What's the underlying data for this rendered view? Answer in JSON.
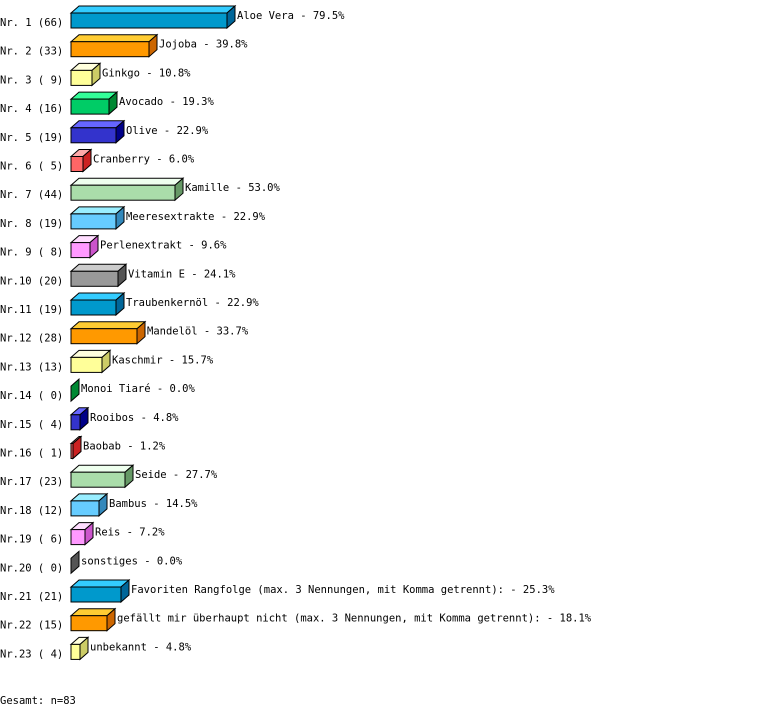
{
  "chart_data": {
    "type": "bar",
    "orientation": "horizontal",
    "style": "3d",
    "categories": [
      "Aloe Vera",
      "Jojoba",
      "Ginkgo",
      "Avocado",
      "Olive",
      "Cranberry",
      "Kamille",
      "Meeresextrakte",
      "Perlenextrakt",
      "Vitamin E",
      "Traubenkernöl",
      "Mandelöl",
      "Kaschmir",
      "Monoi Tiaré",
      "Rooibos",
      "Baobab",
      "Seide",
      "Bambus",
      "Reis",
      "sonstiges",
      "Favoriten Rangfolge (max. 3 Nennungen, mit Komma getrennt):",
      "gefällt mir überhaupt nicht (max. 3 Nennungen, mit Komma getrennt):",
      "unbekannt"
    ],
    "row_labels": [
      "Nr. 1 (66)",
      "Nr. 2 (33)",
      "Nr. 3 ( 9)",
      "Nr. 4 (16)",
      "Nr. 5 (19)",
      "Nr. 6 ( 5)",
      "Nr. 7 (44)",
      "Nr. 8 (19)",
      "Nr. 9 ( 8)",
      "Nr.10 (20)",
      "Nr.11 (19)",
      "Nr.12 (28)",
      "Nr.13 (13)",
      "Nr.14 ( 0)",
      "Nr.15 ( 4)",
      "Nr.16 ( 1)",
      "Nr.17 (23)",
      "Nr.18 (12)",
      "Nr.19 ( 6)",
      "Nr.20 ( 0)",
      "Nr.21 (21)",
      "Nr.22 (15)",
      "Nr.23 ( 4)"
    ],
    "counts": [
      66,
      33,
      9,
      16,
      19,
      5,
      44,
      19,
      8,
      20,
      19,
      28,
      13,
      0,
      4,
      1,
      23,
      12,
      6,
      0,
      21,
      15,
      4
    ],
    "values": [
      79.5,
      39.8,
      10.8,
      19.3,
      22.9,
      6.0,
      53.0,
      22.9,
      9.6,
      24.1,
      22.9,
      33.7,
      15.7,
      0.0,
      4.8,
      1.2,
      27.7,
      14.5,
      7.2,
      0.0,
      25.3,
      18.1,
      4.8
    ],
    "value_labels": [
      "79.5%",
      "39.8%",
      "10.8%",
      "19.3%",
      "22.9%",
      "6.0%",
      "53.0%",
      "22.9%",
      "9.6%",
      "24.1%",
      "22.9%",
      "33.7%",
      "15.7%",
      "0.0%",
      "4.8%",
      "1.2%",
      "27.7%",
      "14.5%",
      "7.2%",
      "0.0%",
      "25.3%",
      "18.1%",
      "4.8%"
    ],
    "unit": "%",
    "palette": [
      {
        "front": "#0099cc",
        "top": "#33ccff",
        "side": "#006699"
      },
      {
        "front": "#ff9900",
        "top": "#ffcc33",
        "side": "#cc6600"
      },
      {
        "front": "#ffff99",
        "top": "#ffffdd",
        "side": "#cccc66"
      },
      {
        "front": "#00cc66",
        "top": "#33ff99",
        "side": "#008833"
      },
      {
        "front": "#3333cc",
        "top": "#6666ff",
        "side": "#000088"
      },
      {
        "front": "#ff6666",
        "top": "#ffaaaa",
        "side": "#cc2222"
      },
      {
        "front": "#aaddaa",
        "top": "#eeffee",
        "side": "#669966"
      },
      {
        "front": "#66ccff",
        "top": "#99eeff",
        "side": "#3388bb"
      },
      {
        "front": "#ff99ff",
        "top": "#ffddff",
        "side": "#cc55cc"
      },
      {
        "front": "#999999",
        "top": "#cccccc",
        "side": "#555555"
      }
    ],
    "footer": "Gesamt: n=83"
  }
}
